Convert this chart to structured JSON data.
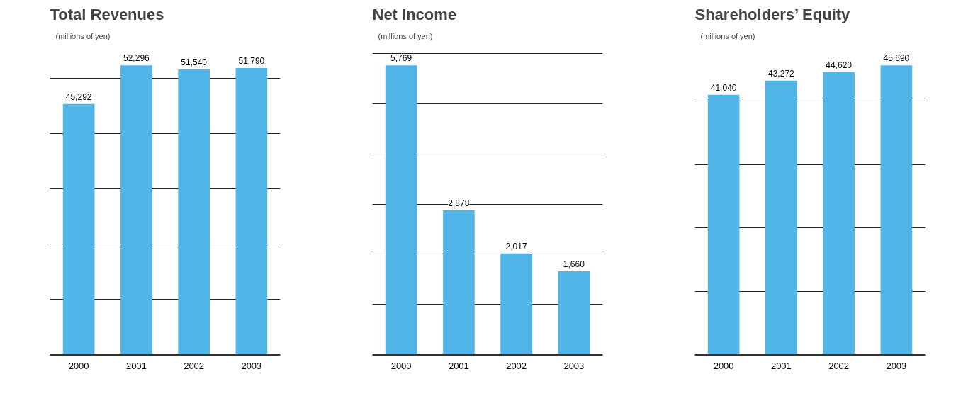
{
  "chart_data": [
    {
      "type": "bar",
      "title": "Total Revenues",
      "ylabel": "(millions of yen)",
      "categories": [
        "2000",
        "2001",
        "2002",
        "2003"
      ],
      "values": [
        45292,
        52296,
        51540,
        51790
      ],
      "value_labels": [
        "45,292",
        "52,296",
        "51,540",
        "51,790"
      ],
      "color": "#52b5e8",
      "grid": "y",
      "tick_labels": "x"
    },
    {
      "type": "bar",
      "title": "Net Income",
      "ylabel": "(millions of yen)",
      "categories": [
        "2000",
        "2001",
        "2002",
        "2003"
      ],
      "values": [
        5769,
        2878,
        2017,
        1660
      ],
      "value_labels": [
        "5,769",
        "2,878",
        "2,017",
        "1,660"
      ],
      "color": "#52b5e8",
      "grid": "y",
      "tick_labels": "x"
    },
    {
      "type": "bar",
      "title": "Shareholders’ Equity",
      "ylabel": "(millions of yen)",
      "categories": [
        "2000",
        "2001",
        "2002",
        "2003"
      ],
      "values": [
        41040,
        43272,
        44620,
        45690
      ],
      "value_labels": [
        "41,040",
        "43,272",
        "44,620",
        "45,690"
      ],
      "color": "#52b5e8",
      "grid": "y",
      "tick_labels": "x"
    }
  ]
}
